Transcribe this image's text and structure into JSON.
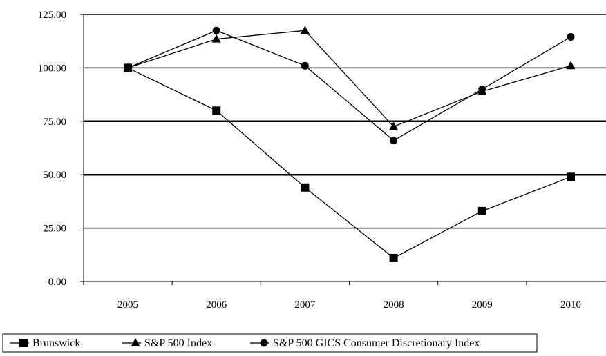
{
  "chart_data": {
    "type": "line",
    "title": "",
    "xlabel": "",
    "ylabel": "",
    "categories": [
      "2005",
      "2006",
      "2007",
      "2008",
      "2009",
      "2010"
    ],
    "ylim": [
      0,
      125
    ],
    "yticks": [
      "0.00",
      "25.00",
      "50.00",
      "75.00",
      "100.00",
      "125.00"
    ],
    "grid": true,
    "legend_position": "bottom",
    "series": [
      {
        "name": "Brunswick",
        "marker": "square",
        "values": [
          100,
          80,
          44,
          11,
          33,
          49
        ]
      },
      {
        "name": "S&P 500 Index",
        "marker": "triangle",
        "values": [
          100,
          113.5,
          117.5,
          72.5,
          89,
          101
        ]
      },
      {
        "name": "S&P 500 GICS Consumer Discretionary Index",
        "marker": "circle",
        "values": [
          100,
          117.5,
          101,
          66,
          90,
          114.5
        ]
      }
    ],
    "colors": {
      "line": "#000000",
      "grid": "#000000",
      "background": "#ffffff"
    }
  }
}
